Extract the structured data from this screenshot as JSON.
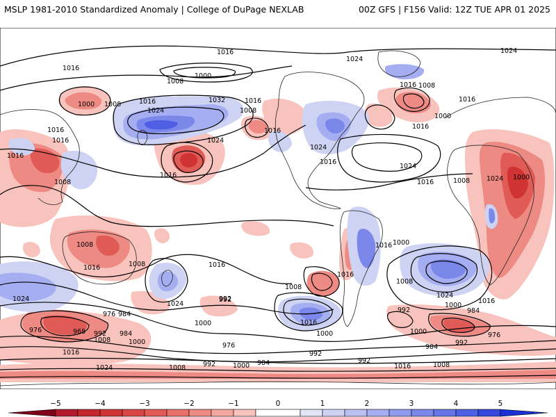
{
  "header": {
    "left": "MSLP 1981-2010 Standardized Anomaly | College of DuPage NEXLAB",
    "right": "00Z GFS | F156 Valid: 12Z TUE APR 01 2025"
  },
  "colors": {
    "neg_5": "#b2182b",
    "neg_4": "#cf3333",
    "neg_3": "#e05a56",
    "neg_2": "#ee8a84",
    "neg_1": "#f9c3bd",
    "zero": "#ffffff",
    "pos_1": "#cfd3f3",
    "pos_2": "#a5aef0",
    "pos_3": "#7b88ea",
    "pos_4": "#4f5fe3",
    "pos_5": "#1d2fd6",
    "contour": "#000000",
    "coast": "#222222"
  },
  "colorbar": {
    "ticks": [
      "−5",
      "−4",
      "−3",
      "−2",
      "−1",
      "0",
      "1",
      "2",
      "3",
      "4",
      "5"
    ]
  },
  "contour_labels": [
    "1016",
    "1024",
    "1024",
    "1016",
    "1000",
    "1008",
    "1000",
    "1008",
    "1016",
    "1024",
    "1032",
    "1008",
    "1016",
    "1016",
    "1016",
    "1016",
    "1016",
    "1008",
    "1024",
    "1016",
    "1016",
    "1024",
    "1016",
    "1024",
    "1000",
    "1008",
    "1016",
    "1008",
    "1016",
    "1016",
    "1008",
    "1008",
    "1024",
    "1016",
    "1024",
    "1000",
    "992",
    "976",
    "984",
    "976",
    "968",
    "992",
    "984",
    "1000",
    "1016",
    "1008",
    "1016",
    "1016",
    "976",
    "992",
    "1008",
    "1016",
    "992",
    "1000",
    "984",
    "992",
    "992",
    "1016",
    "1008",
    "1000",
    "1024",
    "1016",
    "1000",
    "984",
    "976",
    "992",
    "984",
    "1000",
    "1024",
    "1008",
    "992",
    "1000",
    "1008",
    "1016",
    "1024",
    "1000"
  ]
}
